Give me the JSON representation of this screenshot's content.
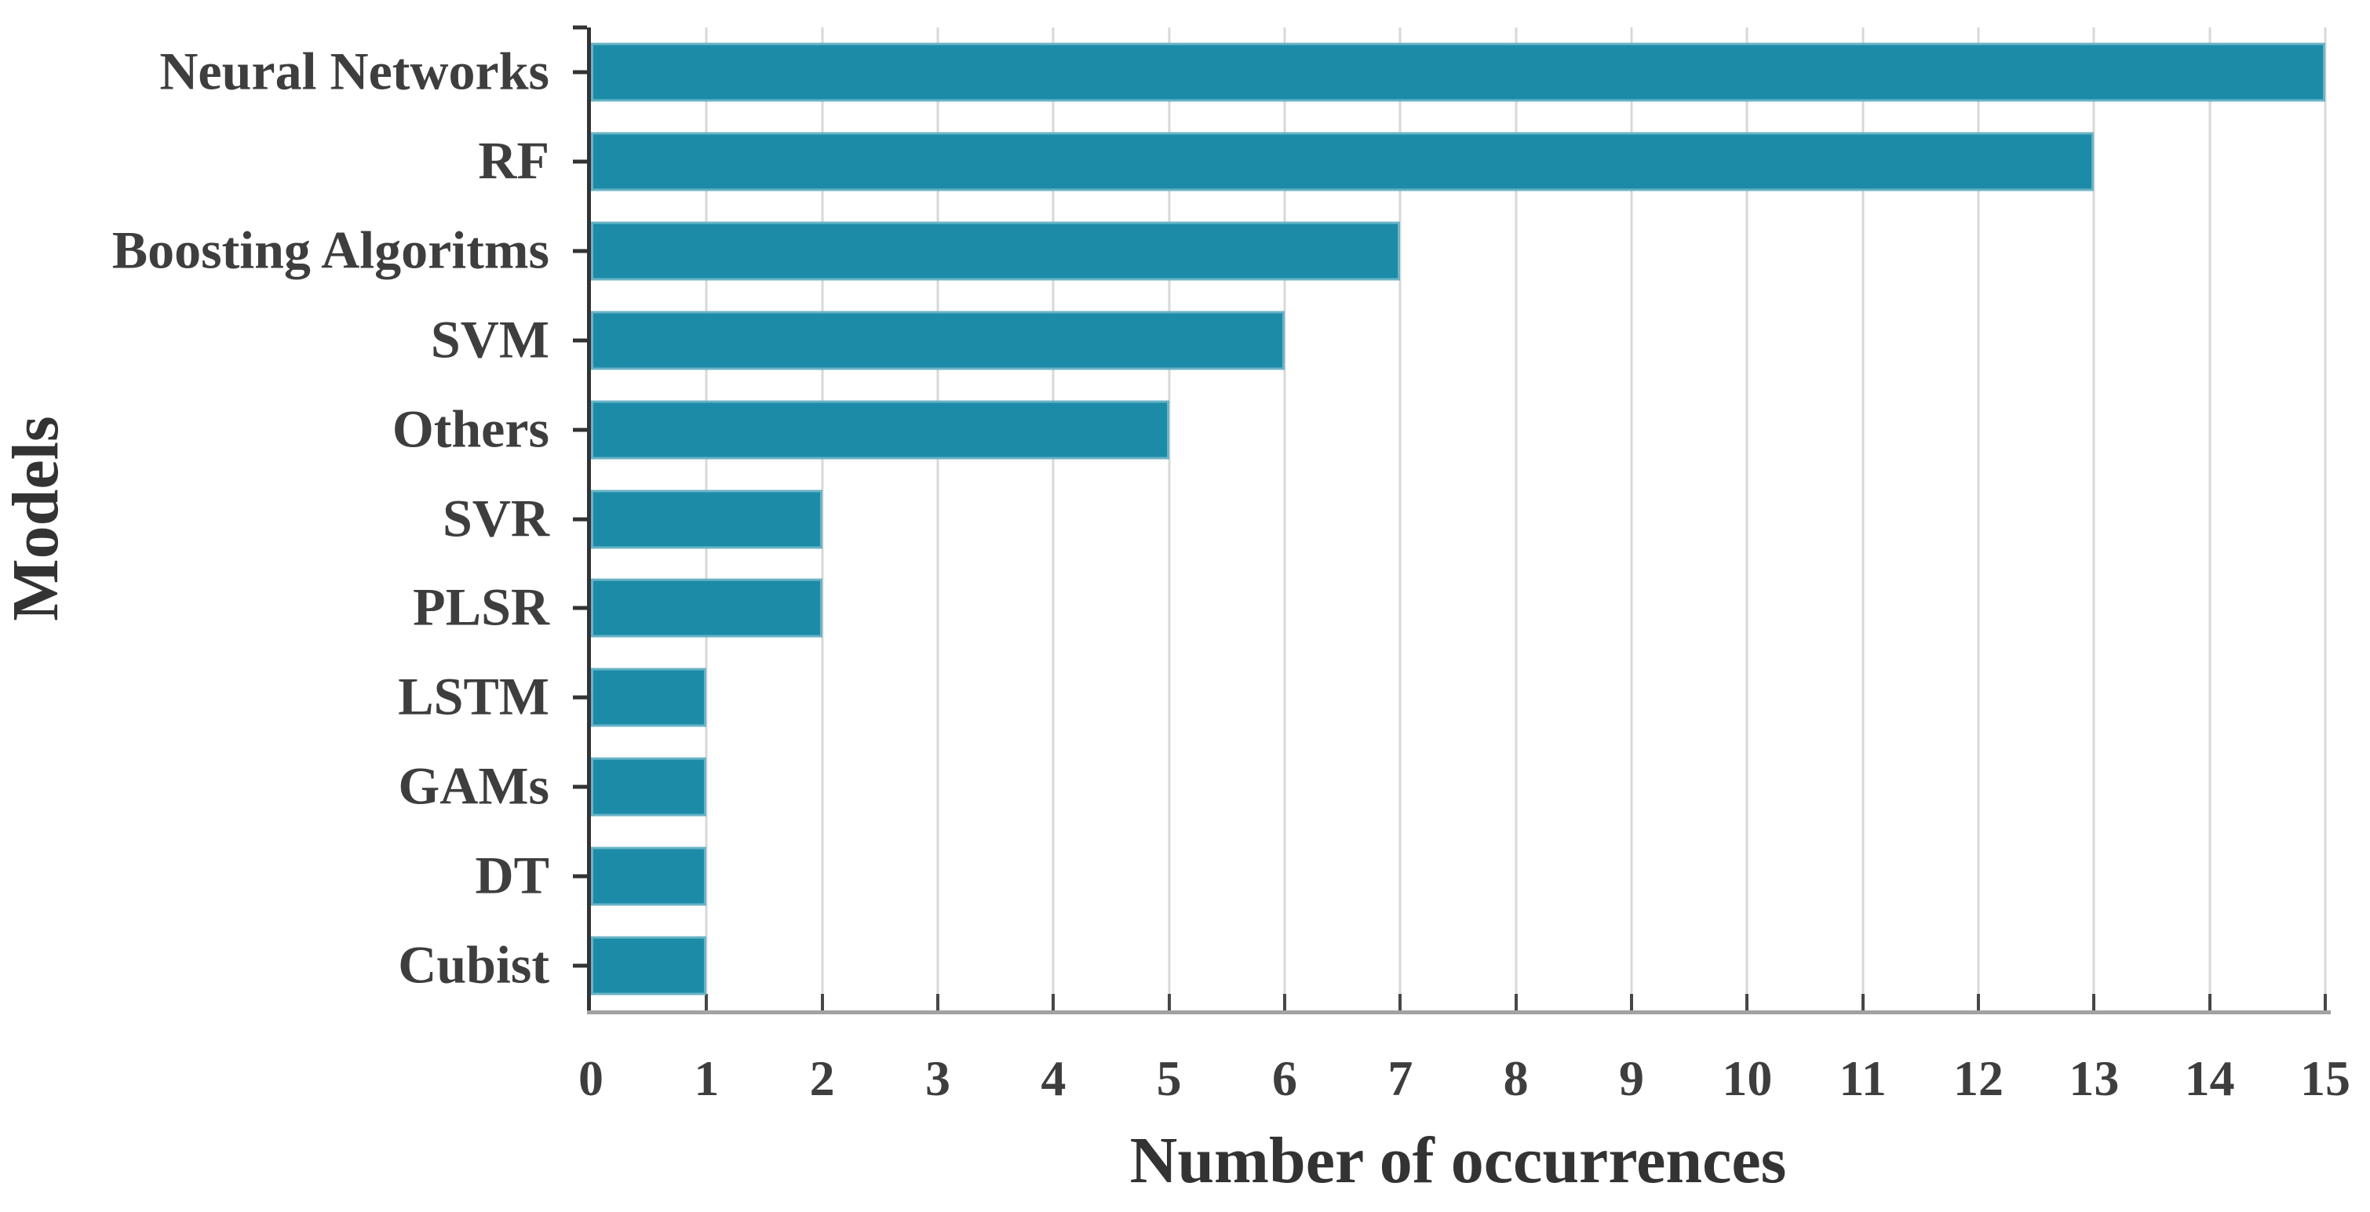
{
  "figure": {
    "background": "#ffffff"
  },
  "chart_data": {
    "type": "bar",
    "orientation": "horizontal",
    "title": "",
    "xlabel": "Number of occurrences",
    "ylabel": "Models",
    "categories": [
      "Neural Networks",
      "RF",
      "Boosting Algoritms",
      "SVM",
      "Others",
      "SVR",
      "PLSR",
      "LSTM",
      "GAMs",
      "DT",
      "Cubist"
    ],
    "values": [
      15,
      13,
      7,
      6,
      5,
      2,
      2,
      1,
      1,
      1,
      1
    ],
    "xlim": [
      0,
      15
    ],
    "xticks": [
      0,
      1,
      2,
      3,
      4,
      5,
      6,
      7,
      8,
      9,
      10,
      11,
      12,
      13,
      14,
      15
    ],
    "grid": "vertical-major",
    "legend": "none",
    "bar_color": "#1b8ba8",
    "bar_edge_color": "rgba(255,255,255,0.35)",
    "gridline_color": "#d8d8d8",
    "x_axis_line_color": "#a2a2a2",
    "y_spine_color": "#333333",
    "tick_mark_color": "#474747",
    "text_color": "#3e3e3e"
  }
}
